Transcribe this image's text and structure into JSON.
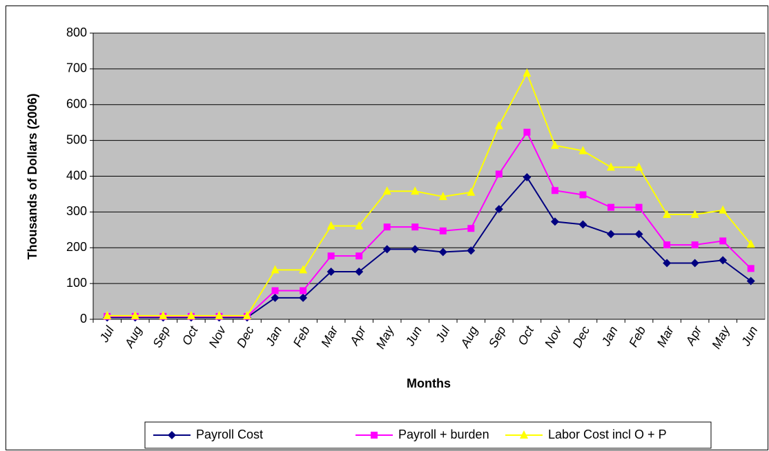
{
  "chart_data": {
    "type": "line",
    "y_label": "Thousands of Dollars (2006)",
    "x_label": "Months",
    "categories": [
      "Jul",
      "Aug",
      "Sep",
      "Oct",
      "Nov",
      "Dec",
      "Jan",
      "Feb",
      "Mar",
      "Apr",
      "May",
      "Jun",
      "Jul",
      "Aug",
      "Sep",
      "Oct",
      "Nov",
      "Dec",
      "Jan",
      "Feb",
      "Mar",
      "Apr",
      "May",
      "Jun"
    ],
    "series": [
      {
        "name": "Payroll Cost",
        "color": "#000080",
        "marker": "diamond",
        "values": [
          5,
          5,
          5,
          5,
          5,
          5,
          60,
          60,
          133,
          133,
          196,
          196,
          188,
          192,
          308,
          397,
          273,
          265,
          238,
          238,
          157,
          157,
          165,
          107
        ]
      },
      {
        "name": "Payroll + burden",
        "color": "#ff00ff",
        "marker": "square",
        "values": [
          8,
          8,
          8,
          8,
          8,
          8,
          80,
          80,
          177,
          177,
          258,
          258,
          247,
          254,
          406,
          523,
          360,
          348,
          313,
          313,
          208,
          208,
          219,
          142
        ]
      },
      {
        "name": "Labor Cost incl O + P",
        "color": "#ffff00",
        "marker": "triangle",
        "values": [
          10,
          10,
          10,
          10,
          10,
          10,
          138,
          138,
          261,
          261,
          358,
          358,
          343,
          355,
          541,
          688,
          486,
          471,
          425,
          425,
          293,
          293,
          305,
          210
        ]
      }
    ],
    "ylim": [
      0,
      800
    ],
    "yticks": [
      0,
      100,
      200,
      300,
      400,
      500,
      600,
      700,
      800
    ],
    "grid": true,
    "plot_color": "#c0c0c0",
    "legend": "bottom"
  }
}
